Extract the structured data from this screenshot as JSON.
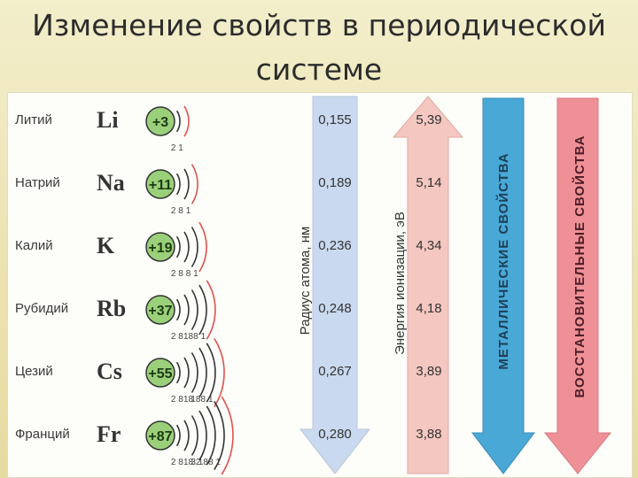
{
  "title": "Изменение свойств в периодической системе",
  "elements": [
    {
      "name": "Литий",
      "symbol": "Li",
      "charge": "+3",
      "shells": [
        "2",
        "1"
      ],
      "radius": "0,155",
      "energy": "5,39"
    },
    {
      "name": "Натрий",
      "symbol": "Na",
      "charge": "+11",
      "shells": [
        "2",
        "8",
        "1"
      ],
      "radius": "0,189",
      "energy": "5,14"
    },
    {
      "name": "Калий",
      "symbol": "K",
      "charge": "+19",
      "shells": [
        "2",
        "8",
        "8",
        "1"
      ],
      "radius": "0,236",
      "energy": "4,34"
    },
    {
      "name": "Рубидий",
      "symbol": "Rb",
      "charge": "+37",
      "shells": [
        "2",
        "8",
        "18",
        "8",
        "1"
      ],
      "radius": "0,248",
      "energy": "4,18"
    },
    {
      "name": "Цезий",
      "symbol": "Cs",
      "charge": "+55",
      "shells": [
        "2",
        "8",
        "18",
        "18",
        "8",
        "1"
      ],
      "radius": "0,267",
      "energy": "3,89"
    },
    {
      "name": "Франций",
      "symbol": "Fr",
      "charge": "+87",
      "shells": [
        "2",
        "8",
        "18",
        "32",
        "18",
        "8",
        "1"
      ],
      "radius": "0,280",
      "energy": "3,88"
    }
  ],
  "labels": {
    "radius": "Радиус атома, нм",
    "energy": "Энергия ионизации, эВ",
    "metallic": "МЕТАЛЛИЧЕСКИЕ СВОЙСТВА",
    "reducing": "ВОССТАНОВИТЕЛЬНЫЕ СВОЙСТВА"
  },
  "colors": {
    "nucleus": "#9bd07a",
    "outer_shell": "#e0524a",
    "radius_arrow": "#c9d9ef",
    "energy_arrow": "#f4c7c0",
    "metallic_arrow": "#49a8d6",
    "reducing_arrow": "#ef9097"
  }
}
